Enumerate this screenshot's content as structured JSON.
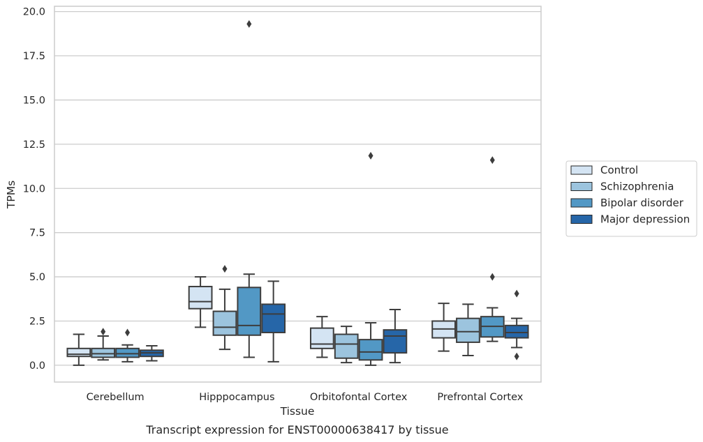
{
  "chart_data": {
    "type": "boxplot",
    "xlabel": "Tissue",
    "ylabel": "TPMs",
    "caption": "Transcript expression for ENST00000638417 by tissue",
    "ylim": [
      -0.95,
      20.3
    ],
    "yticks": [
      "0.0",
      "2.5",
      "5.0",
      "7.5",
      "10.0",
      "12.5",
      "15.0",
      "17.5",
      "20.0"
    ],
    "grid": true,
    "legend_position": "right",
    "categories": [
      "Cerebellum",
      "Hipppocampus",
      "Orbitofontal Cortex",
      "Prefrontal Cortex"
    ],
    "series": [
      {
        "name": "Control",
        "color": "#d4e4f3",
        "boxes": [
          {
            "whislo": 0.0,
            "q1": 0.5,
            "med": 0.62,
            "q3": 0.95,
            "whishi": 1.75,
            "fliers": []
          },
          {
            "whislo": 2.15,
            "q1": 3.2,
            "med": 3.6,
            "q3": 4.45,
            "whishi": 5.0,
            "fliers": []
          },
          {
            "whislo": 0.45,
            "q1": 0.95,
            "med": 1.2,
            "q3": 2.1,
            "whishi": 2.75,
            "fliers": []
          },
          {
            "whislo": 0.8,
            "q1": 1.55,
            "med": 2.05,
            "q3": 2.5,
            "whishi": 3.5,
            "fliers": []
          }
        ]
      },
      {
        "name": "Schizophrenia",
        "color": "#9cc4de",
        "boxes": [
          {
            "whislo": 0.3,
            "q1": 0.45,
            "med": 0.65,
            "q3": 0.95,
            "whishi": 1.65,
            "fliers": [
              1.9
            ]
          },
          {
            "whislo": 0.9,
            "q1": 1.7,
            "med": 2.15,
            "q3": 3.05,
            "whishi": 4.3,
            "fliers": [
              5.45
            ]
          },
          {
            "whislo": 0.15,
            "q1": 0.4,
            "med": 1.2,
            "q3": 1.75,
            "whishi": 2.2,
            "fliers": []
          },
          {
            "whislo": 0.55,
            "q1": 1.3,
            "med": 1.9,
            "q3": 2.65,
            "whishi": 3.45,
            "fliers": []
          }
        ]
      },
      {
        "name": "Bipolar disorder",
        "color": "#5298c5",
        "boxes": [
          {
            "whislo": 0.2,
            "q1": 0.45,
            "med": 0.65,
            "q3": 0.95,
            "whishi": 1.15,
            "fliers": [
              1.85
            ]
          },
          {
            "whislo": 0.45,
            "q1": 1.7,
            "med": 2.25,
            "q3": 4.4,
            "whishi": 5.15,
            "fliers": [
              19.3
            ]
          },
          {
            "whislo": 0.0,
            "q1": 0.3,
            "med": 0.75,
            "q3": 1.45,
            "whishi": 2.4,
            "fliers": [
              11.85
            ]
          },
          {
            "whislo": 1.35,
            "q1": 1.6,
            "med": 2.2,
            "q3": 2.75,
            "whishi": 3.25,
            "fliers": [
              11.6,
              5.0
            ]
          }
        ]
      },
      {
        "name": "Major depression",
        "color": "#2666a8",
        "boxes": [
          {
            "whislo": 0.25,
            "q1": 0.5,
            "med": 0.7,
            "q3": 0.85,
            "whishi": 1.1,
            "fliers": []
          },
          {
            "whislo": 0.2,
            "q1": 1.85,
            "med": 2.9,
            "q3": 3.45,
            "whishi": 4.75,
            "fliers": []
          },
          {
            "whislo": 0.15,
            "q1": 0.7,
            "med": 1.65,
            "q3": 2.0,
            "whishi": 3.15,
            "fliers": []
          },
          {
            "whislo": 1.0,
            "q1": 1.55,
            "med": 1.85,
            "q3": 2.25,
            "whishi": 2.65,
            "fliers": [
              4.05,
              0.5
            ]
          }
        ]
      }
    ]
  }
}
